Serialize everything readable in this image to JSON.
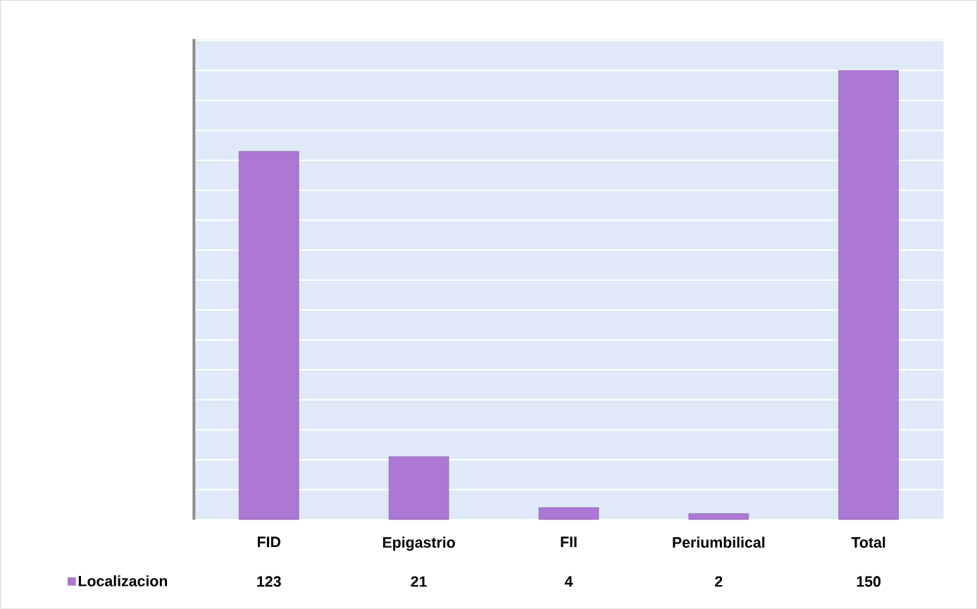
{
  "chart_data": {
    "type": "bar",
    "categories": [
      "FID",
      "Epigastrio",
      "FII",
      "Periumbilical",
      "Total"
    ],
    "series": [
      {
        "name": "Localizacion",
        "color": "#ac78d4",
        "values": [
          123,
          21,
          4,
          2,
          150
        ]
      }
    ],
    "tick_labels": "x",
    "grid": "y",
    "data_labels": true,
    "legend": "bottom left"
  }
}
